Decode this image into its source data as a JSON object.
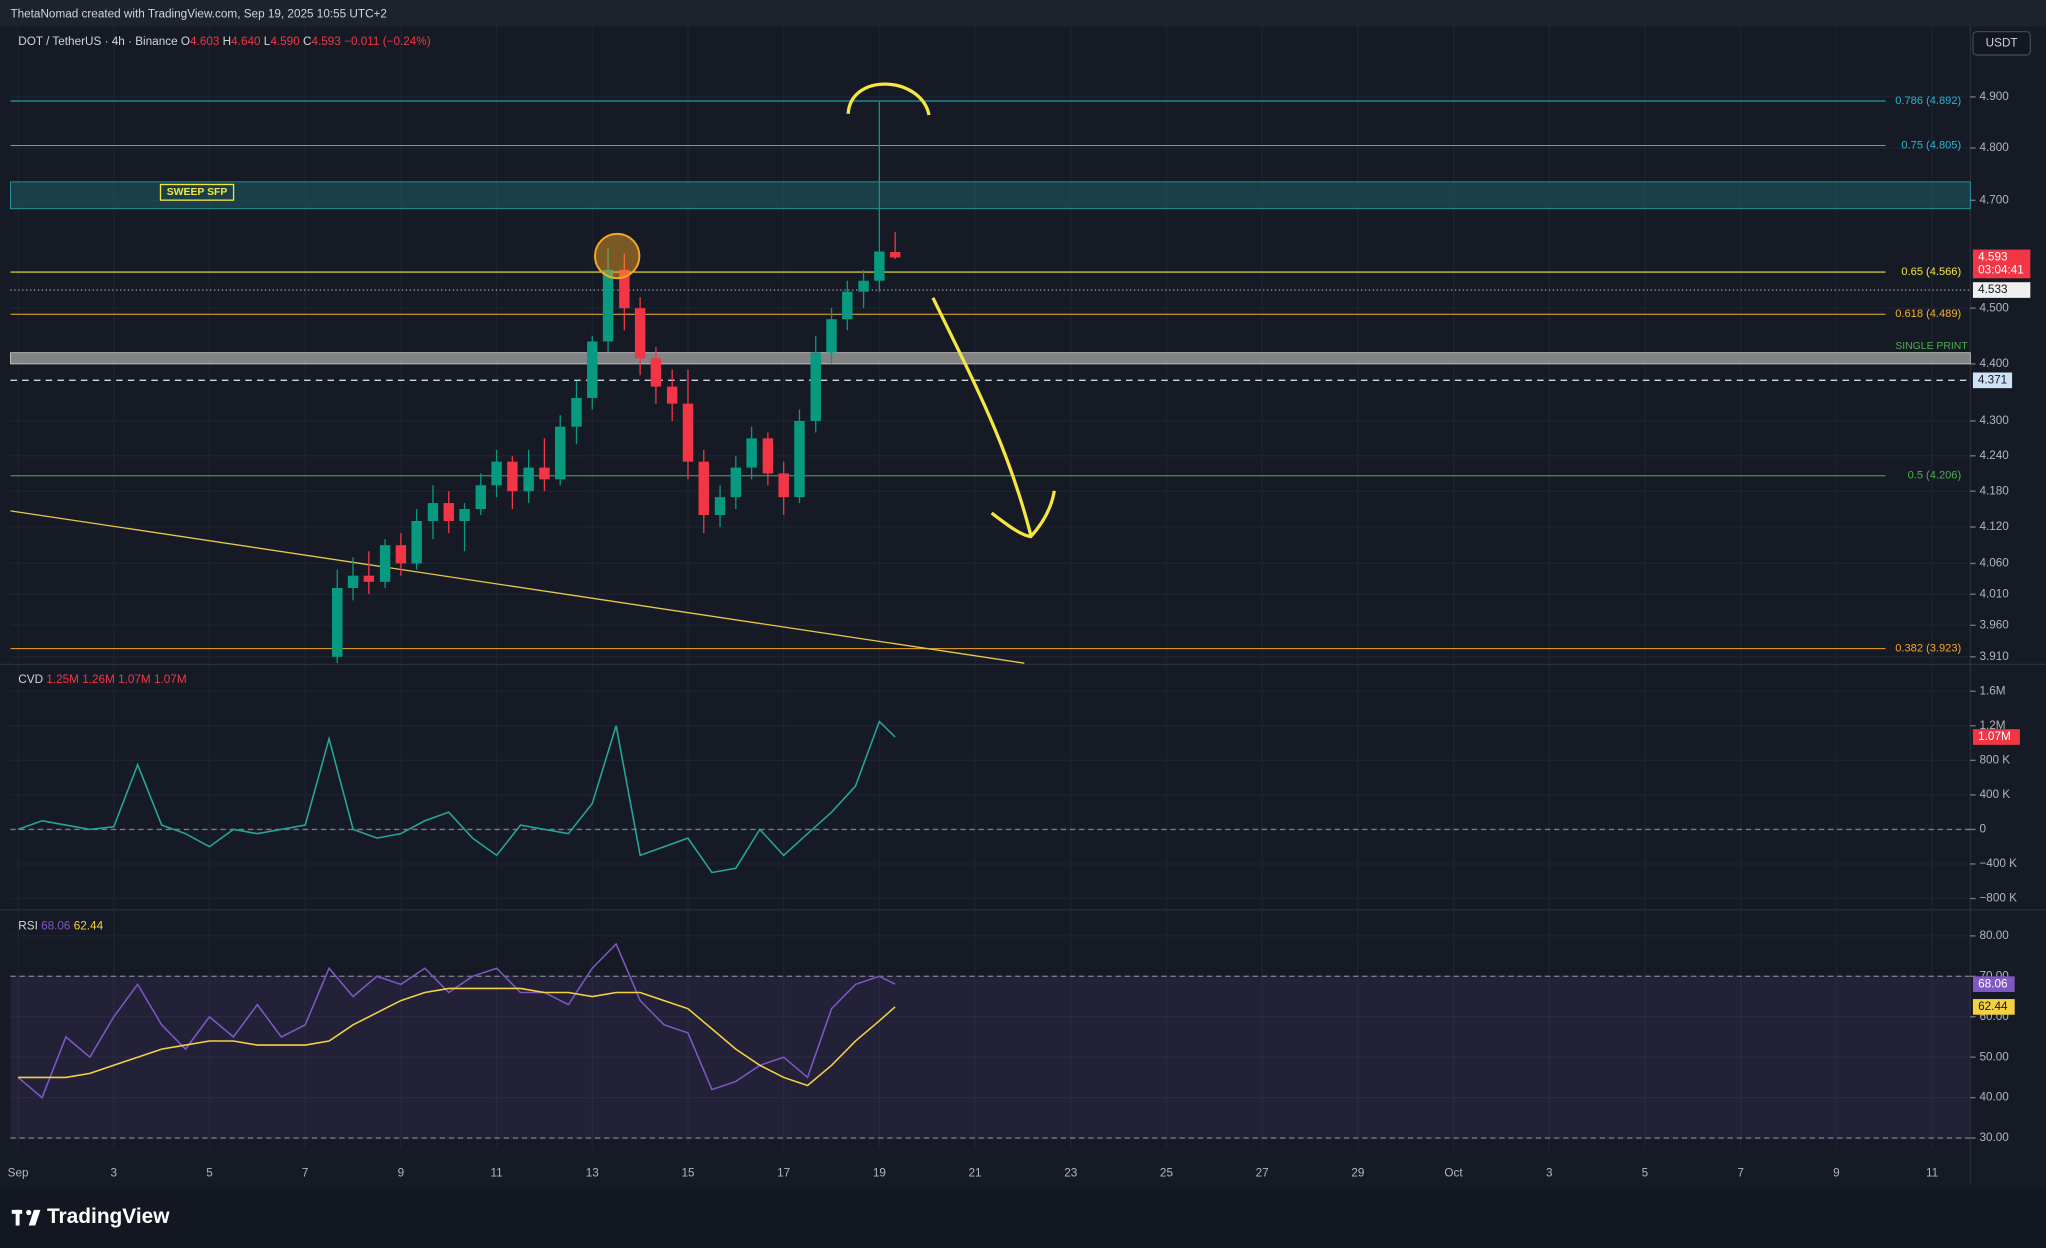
{
  "header": "ThetaNomad created with TradingView.com, Sep 19, 2025 10:55 UTC+2",
  "footer": "TradingView",
  "chart_data": [
    {
      "type": "candlestick",
      "title": "DOT / TetherUS · 4h · Binance",
      "ohlc_legend": [
        [
          "O",
          "4.603"
        ],
        [
          "H",
          "4.640"
        ],
        [
          "L",
          "4.590"
        ],
        [
          "C",
          "4.593"
        ]
      ],
      "change": "−0.011 (−0.24%)",
      "currency": "USDT",
      "log_scale": true,
      "up_color": "#089981",
      "down_color": "#f23645",
      "x": [
        7.67,
        8,
        8.33,
        8.67,
        9,
        9.33,
        9.67,
        10,
        10.33,
        10.67,
        11,
        11.33,
        11.67,
        12,
        12.33,
        12.67,
        13,
        13.33,
        13.67,
        14,
        14.33,
        14.67,
        15,
        15.33,
        15.67,
        16,
        16.33,
        16.67,
        17,
        17.33,
        17.67,
        18,
        18.33,
        18.67,
        19,
        19.33
      ],
      "open": [
        3.91,
        4.02,
        4.04,
        4.03,
        4.09,
        4.06,
        4.13,
        4.16,
        4.13,
        4.15,
        4.19,
        4.23,
        4.18,
        4.22,
        4.2,
        4.29,
        4.34,
        4.44,
        4.57,
        4.5,
        4.41,
        4.36,
        4.33,
        4.23,
        4.14,
        4.17,
        4.22,
        4.27,
        4.21,
        4.17,
        4.3,
        4.42,
        4.48,
        4.53,
        4.55,
        4.603
      ],
      "high": [
        4.05,
        4.07,
        4.08,
        4.1,
        4.11,
        4.15,
        4.19,
        4.18,
        4.16,
        4.21,
        4.25,
        4.24,
        4.25,
        4.27,
        4.31,
        4.37,
        4.45,
        4.61,
        4.6,
        4.52,
        4.43,
        4.39,
        4.39,
        4.25,
        4.19,
        4.24,
        4.29,
        4.28,
        4.23,
        4.32,
        4.45,
        4.5,
        4.55,
        4.57,
        4.89,
        4.64
      ],
      "low": [
        3.9,
        4.0,
        4.01,
        4.02,
        4.04,
        4.05,
        4.1,
        4.11,
        4.08,
        4.14,
        4.17,
        4.15,
        4.16,
        4.18,
        4.19,
        4.26,
        4.32,
        4.42,
        4.46,
        4.38,
        4.33,
        4.3,
        4.2,
        4.11,
        4.12,
        4.15,
        4.2,
        4.19,
        4.14,
        4.16,
        4.28,
        4.4,
        4.46,
        4.5,
        4.53,
        4.59
      ],
      "close": [
        4.02,
        4.04,
        4.03,
        4.09,
        4.06,
        4.13,
        4.16,
        4.13,
        4.15,
        4.19,
        4.23,
        4.18,
        4.22,
        4.2,
        4.29,
        4.34,
        4.44,
        4.57,
        4.5,
        4.41,
        4.36,
        4.33,
        4.23,
        4.14,
        4.17,
        4.22,
        4.27,
        4.21,
        4.17,
        4.3,
        4.42,
        4.48,
        4.53,
        4.55,
        4.604,
        4.593
      ],
      "xlim": [
        0.84,
        41.8
      ],
      "ylim": [
        3.898,
        5.036
      ],
      "yticks": [
        {
          "value": 4.9,
          "label": "4.900"
        },
        {
          "value": 4.8,
          "label": "4.800"
        },
        {
          "value": 4.7,
          "label": "4.700"
        },
        {
          "value": 4.5,
          "label": "4.500"
        },
        {
          "value": 4.4,
          "label": "4.400"
        },
        {
          "value": 4.3,
          "label": "4.300"
        },
        {
          "value": 4.24,
          "label": "4.240"
        },
        {
          "value": 4.18,
          "label": "4.180"
        },
        {
          "value": 4.12,
          "label": "4.120"
        },
        {
          "value": 4.06,
          "label": "4.060"
        },
        {
          "value": 4.01,
          "label": "4.010"
        },
        {
          "value": 3.96,
          "label": "3.960"
        },
        {
          "value": 3.91,
          "label": "3.910"
        }
      ],
      "fib_levels": [
        {
          "value": 4.892,
          "label": "0.786 (4.892)",
          "color": "#22b8cf"
        },
        {
          "value": 4.805,
          "label": "0.75 (4.805)",
          "color": "#22b8cf"
        },
        {
          "value": 4.566,
          "label": "0.65 (4.566)",
          "color": "#f5e642"
        },
        {
          "value": 4.489,
          "label": "0.618 (4.489)",
          "color": "#f2b32c"
        },
        {
          "value": 4.206,
          "label": "0.5 (4.206)",
          "color": "#4caf50"
        },
        {
          "value": 3.923,
          "label": "0.382 (3.923)",
          "color": "#f5a623"
        }
      ],
      "zones": [
        {
          "name": "SWEEP SFP",
          "range": [
            4.684,
            4.735
          ],
          "color": "#1f5f66"
        },
        {
          "name": "SINGLE PRINT",
          "range": [
            4.4,
            4.42
          ],
          "color": "#9e9e9e"
        }
      ],
      "dashed_level": {
        "value": 4.371,
        "label": "4.371"
      },
      "dotted_level": 4.533,
      "price_badges": [
        {
          "value": 4.593,
          "label": "4.593",
          "sub": "03:04:41",
          "color": "#f23645"
        },
        {
          "value": 4.533,
          "label": "4.533",
          "color": "#f0f0f0"
        }
      ],
      "trendline": {
        "x": [
          0.84,
          22.03
        ],
        "y": [
          4.147,
          3.9
        ],
        "color": "#e6c84a"
      }
    },
    {
      "type": "line",
      "title": "CVD",
      "legend_values": [
        "1.25M",
        "1.26M",
        "1.07M",
        "1.07M"
      ],
      "series": [
        {
          "name": "CVD",
          "color": "#26a69a",
          "x": [
            1,
            1.5,
            2,
            2.5,
            3,
            3.5,
            4,
            4.5,
            5,
            5.5,
            6,
            6.5,
            7,
            7.5,
            8,
            8.5,
            9,
            9.5,
            10,
            10.5,
            11,
            11.5,
            12,
            12.5,
            13,
            13.5,
            14,
            14.5,
            15,
            15.5,
            16,
            16.5,
            17,
            17.5,
            18,
            18.5,
            19,
            19.33
          ],
          "values": [
            0,
            100000,
            50000,
            0,
            30000,
            750000,
            50000,
            -50000,
            -200000,
            0,
            -50000,
            0,
            50000,
            1050000,
            0,
            -100000,
            -50000,
            100000,
            200000,
            -100000,
            -300000,
            50000,
            0,
            -50000,
            300000,
            1200000,
            -300000,
            -200000,
            -100000,
            -500000,
            -450000,
            0,
            -300000,
            -50000,
            200000,
            500000,
            1250000,
            1070000
          ]
        }
      ],
      "ylim": [
        -900000,
        1880000
      ],
      "yticks": [
        {
          "value": 1600000,
          "label": "1.6M"
        },
        {
          "value": 1200000,
          "label": "1.2M"
        },
        {
          "value": 800000,
          "label": "800 K"
        },
        {
          "value": 400000,
          "label": "400 K"
        },
        0,
        {
          "value": -400000,
          "label": "−400 K"
        },
        {
          "value": -800000,
          "label": "−800 K"
        }
      ],
      "badge": {
        "value": 1070000,
        "label": "1.07M",
        "color": "#f23645"
      }
    },
    {
      "type": "line",
      "title": "RSI",
      "series": [
        {
          "name": "RSI",
          "color": "#7e57c2",
          "x": [
            1,
            1.5,
            2,
            2.5,
            3,
            3.5,
            4,
            4.5,
            5,
            5.5,
            6,
            6.5,
            7,
            7.5,
            8,
            8.5,
            9,
            9.5,
            10,
            10.5,
            11,
            11.5,
            12,
            12.5,
            13,
            13.5,
            14,
            14.5,
            15,
            15.5,
            16,
            16.5,
            17,
            17.5,
            18,
            18.5,
            19,
            19.33
          ],
          "values": [
            45,
            40,
            55,
            50,
            60,
            68,
            58,
            52,
            60,
            55,
            63,
            55,
            58,
            72,
            65,
            70,
            68,
            72,
            66,
            70,
            72,
            66,
            66,
            63,
            72,
            78,
            64,
            58,
            56,
            42,
            44,
            48,
            50,
            45,
            62,
            68,
            70,
            68.06
          ]
        },
        {
          "name": "RSI MA",
          "color": "#f5d142",
          "x": [
            1,
            1.5,
            2,
            2.5,
            3,
            3.5,
            4,
            4.5,
            5,
            5.5,
            6,
            6.5,
            7,
            7.5,
            8,
            8.5,
            9,
            9.5,
            10,
            10.5,
            11,
            11.5,
            12,
            12.5,
            13,
            13.5,
            14,
            14.5,
            15,
            15.5,
            16,
            16.5,
            17,
            17.5,
            18,
            18.5,
            19,
            19.33
          ],
          "values": [
            45,
            45,
            45,
            46,
            48,
            50,
            52,
            53,
            54,
            54,
            53,
            53,
            53,
            54,
            58,
            61,
            64,
            66,
            67,
            67,
            67,
            67,
            66,
            66,
            65,
            66,
            66,
            64,
            62,
            57,
            52,
            48,
            45,
            43,
            48,
            54,
            59,
            62.44
          ]
        }
      ],
      "ylim": [
        27.4,
        85.5
      ],
      "band": [
        30,
        70
      ],
      "yticks": [
        {
          "value": 80,
          "label": "80.00"
        },
        {
          "value": 70,
          "label": "70.00"
        },
        {
          "value": 60,
          "label": "60.00"
        },
        {
          "value": 50,
          "label": "50.00"
        },
        {
          "value": 40,
          "label": "40.00"
        },
        {
          "value": 30,
          "label": "30.00"
        }
      ],
      "xticks": [
        {
          "value": 1,
          "label": "Sep"
        },
        3,
        5,
        7,
        9,
        11,
        13,
        15,
        17,
        19,
        21,
        23,
        25,
        27,
        29,
        {
          "value": 31,
          "label": "Oct"
        },
        {
          "value": 33,
          "label": "3"
        },
        {
          "value": 35,
          "label": "5"
        },
        {
          "value": 37,
          "label": "7"
        },
        {
          "value": 39,
          "label": "9"
        },
        {
          "value": 41,
          "label": "11"
        }
      ]
    }
  ]
}
